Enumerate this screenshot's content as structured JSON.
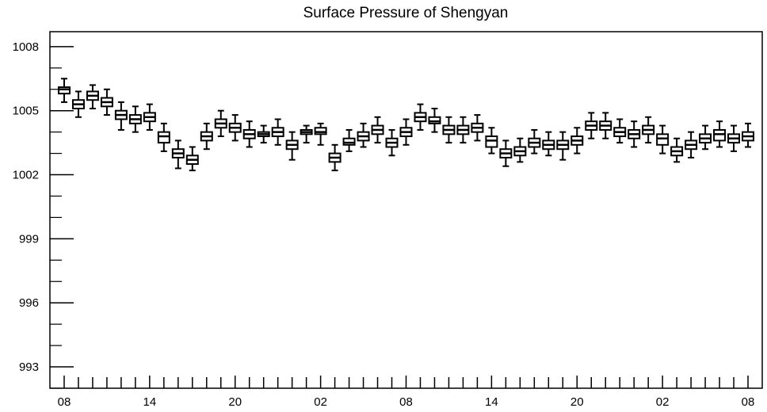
{
  "chart_data": {
    "type": "box",
    "title": "Surface Pressure of Shengyan",
    "xlabel": "",
    "ylabel": "",
    "ylim": [
      992,
      1008.7
    ],
    "yticks": [
      1008,
      1005,
      1002,
      999,
      996,
      993
    ],
    "ytick_labels": [
      "1008",
      "1005",
      "1002",
      "999",
      "996",
      "993"
    ],
    "xtick_labels": [
      "08",
      "14",
      "20",
      "02",
      "08",
      "14",
      "20",
      "02",
      "08"
    ],
    "xtick_hours": [
      0,
      6,
      12,
      18,
      24,
      30,
      36,
      42,
      48
    ],
    "hours": [
      0,
      1,
      2,
      3,
      4,
      5,
      6,
      7,
      8,
      9,
      10,
      11,
      12,
      13,
      14,
      15,
      16,
      17,
      18,
      19,
      20,
      21,
      22,
      23,
      24,
      25,
      26,
      27,
      28,
      29,
      30,
      31,
      32,
      33,
      34,
      35,
      36,
      37,
      38,
      39,
      40,
      41,
      42,
      43,
      44,
      45,
      46,
      47,
      48
    ],
    "whisker_low": [
      1005.4,
      1004.7,
      1005.1,
      1004.8,
      1004.1,
      1004.0,
      1004.1,
      1003.1,
      1002.3,
      1002.2,
      1003.2,
      1003.8,
      1003.6,
      1003.3,
      1003.5,
      1003.4,
      1002.7,
      1003.5,
      1003.4,
      1002.2,
      1003.1,
      1003.3,
      1003.5,
      1002.9,
      1003.4,
      1004.1,
      1004.0,
      1003.5,
      1003.5,
      1003.6,
      1003.0,
      1002.4,
      1002.6,
      1003.0,
      1002.9,
      1002.7,
      1003.0,
      1003.7,
      1003.7,
      1003.5,
      1003.3,
      1003.5,
      1003.0,
      1002.6,
      1002.8,
      1003.2,
      1003.3,
      1003.1,
      1003.3
    ],
    "q1": [
      1005.8,
      1005.1,
      1005.5,
      1005.2,
      1004.6,
      1004.4,
      1004.5,
      1003.5,
      1002.8,
      1002.5,
      1003.6,
      1004.2,
      1004.0,
      1003.7,
      1003.8,
      1003.8,
      1003.2,
      1003.9,
      1003.9,
      1002.6,
      1003.4,
      1003.6,
      1003.9,
      1003.3,
      1003.8,
      1004.5,
      1004.4,
      1003.9,
      1003.9,
      1004.0,
      1003.3,
      1002.8,
      1002.9,
      1003.3,
      1003.2,
      1003.2,
      1003.4,
      1004.1,
      1004.1,
      1003.8,
      1003.7,
      1003.9,
      1003.4,
      1002.9,
      1003.2,
      1003.5,
      1003.6,
      1003.5,
      1003.6
    ],
    "median": [
      1006.0,
      1005.3,
      1005.7,
      1005.4,
      1004.8,
      1004.6,
      1004.7,
      1003.8,
      1003.0,
      1002.7,
      1003.8,
      1004.4,
      1004.2,
      1003.9,
      1003.9,
      1004.0,
      1003.4,
      1004.0,
      1004.0,
      1002.8,
      1003.5,
      1003.8,
      1004.1,
      1003.5,
      1004.0,
      1004.7,
      1004.5,
      1004.1,
      1004.1,
      1004.2,
      1003.6,
      1003.0,
      1003.1,
      1003.5,
      1003.4,
      1003.4,
      1003.6,
      1004.3,
      1004.3,
      1004.0,
      1003.9,
      1004.1,
      1003.7,
      1003.1,
      1003.4,
      1003.7,
      1003.9,
      1003.7,
      1003.8
    ],
    "q3": [
      1006.1,
      1005.5,
      1005.9,
      1005.6,
      1005.0,
      1004.8,
      1004.9,
      1004.0,
      1003.2,
      1002.9,
      1004.0,
      1004.6,
      1004.4,
      1004.1,
      1004.0,
      1004.2,
      1003.6,
      1004.1,
      1004.2,
      1003.0,
      1003.7,
      1004.0,
      1004.3,
      1003.7,
      1004.2,
      1004.9,
      1004.7,
      1004.3,
      1004.3,
      1004.4,
      1003.8,
      1003.2,
      1003.3,
      1003.7,
      1003.6,
      1003.6,
      1003.8,
      1004.5,
      1004.5,
      1004.2,
      1004.1,
      1004.3,
      1003.9,
      1003.3,
      1003.6,
      1003.9,
      1004.1,
      1003.9,
      1004.0
    ],
    "whisker_high": [
      1006.5,
      1005.9,
      1006.2,
      1006.0,
      1005.4,
      1005.2,
      1005.3,
      1004.4,
      1003.6,
      1003.3,
      1004.4,
      1005.0,
      1004.8,
      1004.5,
      1004.3,
      1004.6,
      1004.0,
      1004.3,
      1004.4,
      1003.4,
      1004.1,
      1004.4,
      1004.7,
      1004.1,
      1004.6,
      1005.3,
      1005.1,
      1004.7,
      1004.7,
      1004.8,
      1004.2,
      1003.6,
      1003.7,
      1004.1,
      1004.0,
      1004.0,
      1004.2,
      1004.9,
      1004.9,
      1004.6,
      1004.5,
      1004.7,
      1004.3,
      1003.7,
      1004.0,
      1004.3,
      1004.5,
      1004.3,
      1004.4
    ]
  }
}
